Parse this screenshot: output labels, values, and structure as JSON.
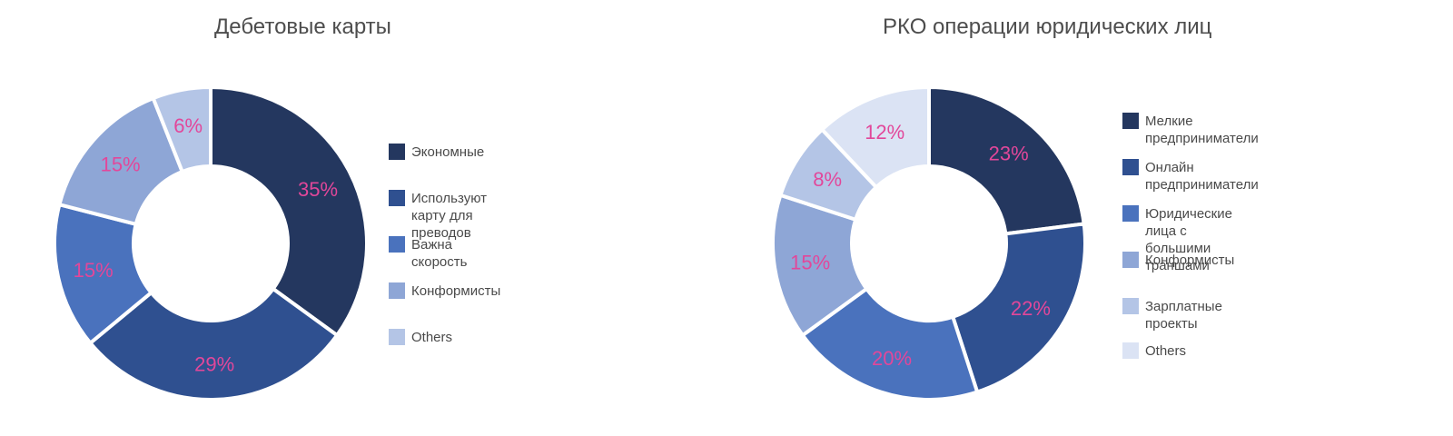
{
  "charts": [
    {
      "title": "Дебетовые карты",
      "legend": [
        {
          "label": "Экономные",
          "color": "#24375f"
        },
        {
          "label": "Используют карту для преводов",
          "color": "#2f5090"
        },
        {
          "label": "Важна скорость",
          "color": "#4a72bd"
        },
        {
          "label": "Конформисты",
          "color": "#8ea6d6"
        },
        {
          "label": "Others",
          "color": "#b4c5e6"
        }
      ]
    },
    {
      "title": "РКО операции юридических лиц",
      "legend": [
        {
          "label": "Мелкие предприниматели",
          "color": "#24375f"
        },
        {
          "label": "Онлайн предприниматели",
          "color": "#2f5090"
        },
        {
          "label": "Юридические лица с большими траншами",
          "color": "#4a72bd"
        },
        {
          "label": "Конформисты",
          "color": "#8ea6d6"
        },
        {
          "label": "Зарплатные проекты",
          "color": "#b4c5e6"
        },
        {
          "label": "Others",
          "color": "#dbe3f4"
        }
      ]
    }
  ],
  "label_color": "#e2479a",
  "chart_data": [
    {
      "type": "pie",
      "subtype": "donut",
      "title": "Дебетовые карты",
      "categories": [
        "Экономные",
        "Используют карту для преводов",
        "Важна скорость",
        "Конформисты",
        "Others"
      ],
      "values": [
        35,
        29,
        15,
        15,
        6
      ],
      "labels": [
        "35%",
        "29%",
        "15%",
        "15%",
        "6%"
      ],
      "colors": [
        "#24375f",
        "#2f5090",
        "#4a72bd",
        "#8ea6d6",
        "#b4c5e6"
      ],
      "legend_position": "right",
      "start_angle": "12 o'clock, clockwise"
    },
    {
      "type": "pie",
      "subtype": "donut",
      "title": "РКО операции юридических лиц",
      "categories": [
        "Мелкие предприниматели",
        "Онлайн предприниматели",
        "Юридические лица с большими траншами",
        "Конформисты",
        "Зарплатные проекты",
        "Others"
      ],
      "values": [
        23,
        22,
        20,
        15,
        8,
        12
      ],
      "labels": [
        "23%",
        "22%",
        "20%",
        "15%",
        "8%",
        "12%"
      ],
      "colors": [
        "#24375f",
        "#2f5090",
        "#4a72bd",
        "#8ea6d6",
        "#b4c5e6",
        "#dbe3f4"
      ],
      "legend_position": "right",
      "start_angle": "12 o'clock, clockwise"
    }
  ]
}
